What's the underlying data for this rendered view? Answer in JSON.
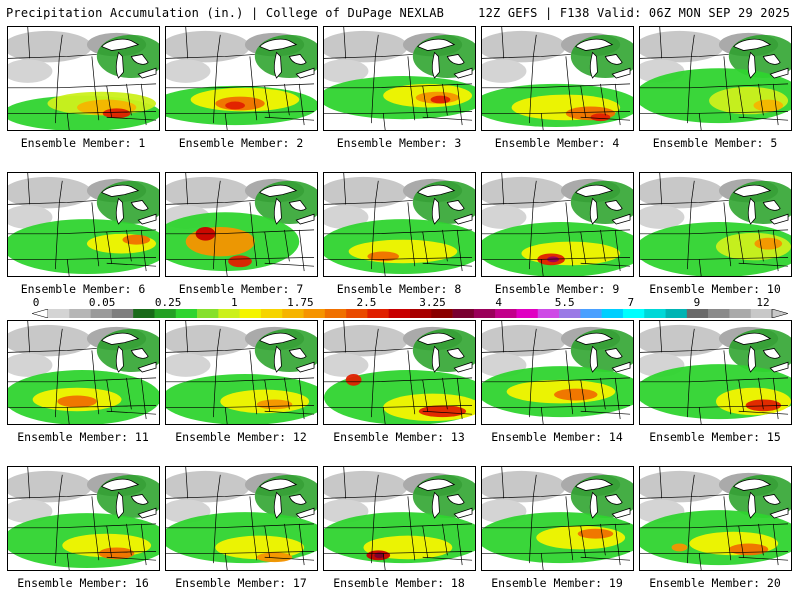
{
  "header": {
    "title": "Precipitation Accumulation (in.) | College of DuPage NEXLAB",
    "run_info": "12Z GEFS | F138 Valid: 06Z MON SEP 29 2025"
  },
  "scale": {
    "labels": [
      "0",
      "0.05",
      "0.25",
      "1",
      "1.75",
      "2.5",
      "3.25",
      "4",
      "5.5",
      "7",
      "9",
      "12"
    ],
    "colors": [
      "#d4d4d4",
      "#b6b6b6",
      "#9a9a9a",
      "#7e7e7e",
      "#196a19",
      "#24a024",
      "#2fd42f",
      "#86e02c",
      "#ccf01c",
      "#f4f400",
      "#f6d400",
      "#f6b400",
      "#f69400",
      "#f07000",
      "#ea4a00",
      "#e02000",
      "#c80000",
      "#a80000",
      "#8a0000",
      "#7a0030",
      "#9a005a",
      "#c2008a",
      "#e000c2",
      "#ce4ae6",
      "#9a7ae6",
      "#4aa0ff",
      "#00cfff",
      "#00ffff",
      "#00d8d8",
      "#00b4b4",
      "#6a6a6a",
      "#8a8a8a",
      "#aaaaaa",
      "#c8c8c8"
    ]
  },
  "members": [
    {
      "label": "Ensemble Member: 1"
    },
    {
      "label": "Ensemble Member: 2"
    },
    {
      "label": "Ensemble Member: 3"
    },
    {
      "label": "Ensemble Member: 4"
    },
    {
      "label": "Ensemble Member: 5"
    },
    {
      "label": "Ensemble Member: 6"
    },
    {
      "label": "Ensemble Member: 7"
    },
    {
      "label": "Ensemble Member: 8"
    },
    {
      "label": "Ensemble Member: 9"
    },
    {
      "label": "Ensemble Member: 10"
    },
    {
      "label": "Ensemble Member: 11"
    },
    {
      "label": "Ensemble Member: 12"
    },
    {
      "label": "Ensemble Member: 13"
    },
    {
      "label": "Ensemble Member: 14"
    },
    {
      "label": "Ensemble Member: 15"
    },
    {
      "label": "Ensemble Member: 16"
    },
    {
      "label": "Ensemble Member: 17"
    },
    {
      "label": "Ensemble Member: 18"
    },
    {
      "label": "Ensemble Member: 19"
    },
    {
      "label": "Ensemble Member: 20"
    }
  ]
}
